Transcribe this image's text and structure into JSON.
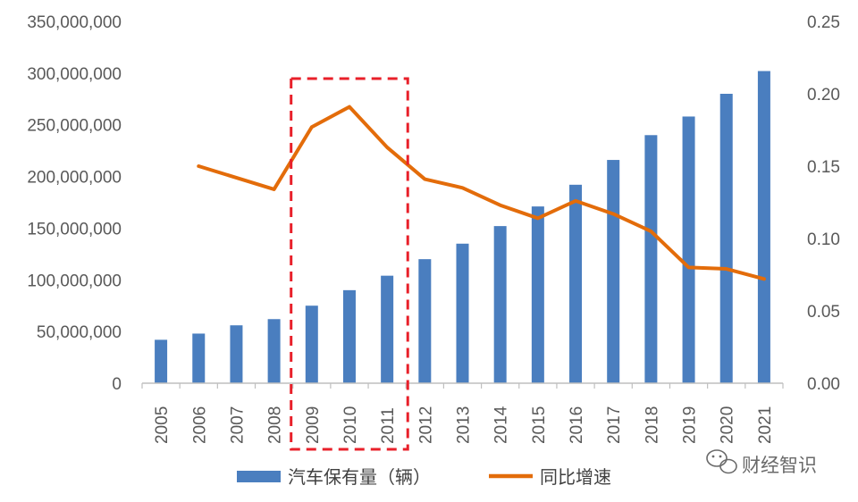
{
  "chart_data": {
    "type": "bar",
    "categories": [
      "2005",
      "2006",
      "2007",
      "2008",
      "2009",
      "2010",
      "2011",
      "2012",
      "2013",
      "2014",
      "2015",
      "2016",
      "2017",
      "2018",
      "2019",
      "2020",
      "2021"
    ],
    "series": [
      {
        "name": "汽车保有量（辆）",
        "type": "bar",
        "axis": "left",
        "values": [
          42000000,
          48000000,
          56000000,
          62000000,
          75000000,
          90000000,
          104000000,
          120000000,
          135000000,
          152000000,
          171000000,
          192000000,
          216000000,
          240000000,
          258000000,
          280000000,
          302000000
        ]
      },
      {
        "name": "同比增速",
        "type": "line",
        "axis": "right",
        "values": [
          null,
          0.15,
          null,
          0.134,
          0.177,
          0.191,
          0.163,
          0.141,
          0.135,
          0.123,
          0.114,
          0.126,
          0.117,
          0.105,
          0.08,
          0.079,
          0.072
        ]
      }
    ],
    "ylim_left": [
      0,
      350000000
    ],
    "ylim_right": [
      0,
      0.25
    ],
    "yticks_left": [
      "0",
      "50,000,000",
      "100,000,000",
      "150,000,000",
      "200,000,000",
      "250,000,000",
      "300,000,000",
      "350,000,000"
    ],
    "yticks_right": [
      "0.00",
      "0.05",
      "0.10",
      "0.15",
      "0.20",
      "0.25"
    ],
    "highlight_categories": [
      "2009",
      "2010",
      "2011"
    ],
    "legend_position": "bottom",
    "grid": false,
    "colors": {
      "bar": "#4a7ebf",
      "line": "#e36c0a",
      "highlight": "#e8202a",
      "axis": "#bfbfbf"
    }
  },
  "watermark": {
    "text": "财经智识",
    "icon": "wechat-icon"
  }
}
